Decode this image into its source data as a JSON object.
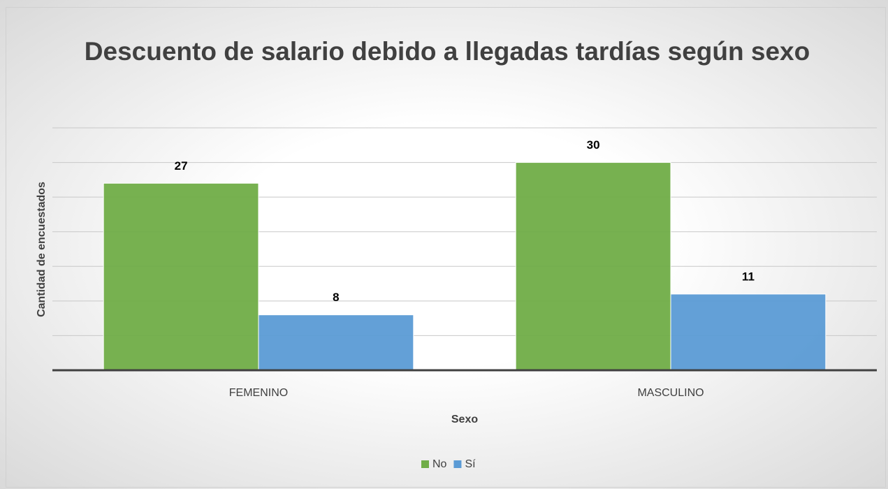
{
  "chart_data": {
    "type": "bar",
    "title": "Descuento de salario debido a llegadas tardías según sexo",
    "x_label": "Sexo",
    "y_label": "Cantidad de encuestados",
    "categories": [
      "FEMENINO",
      "MASCULINO"
    ],
    "series": [
      {
        "name": "No",
        "color": "#70ad47",
        "values": [
          27,
          30
        ]
      },
      {
        "name": "Sí",
        "color": "#5b9bd5",
        "values": [
          8,
          11
        ]
      }
    ],
    "ylim": [
      0,
      35
    ],
    "yticks": [
      0,
      5,
      10,
      15,
      20,
      25,
      30,
      35
    ],
    "grid": true,
    "legend": "bottom"
  }
}
